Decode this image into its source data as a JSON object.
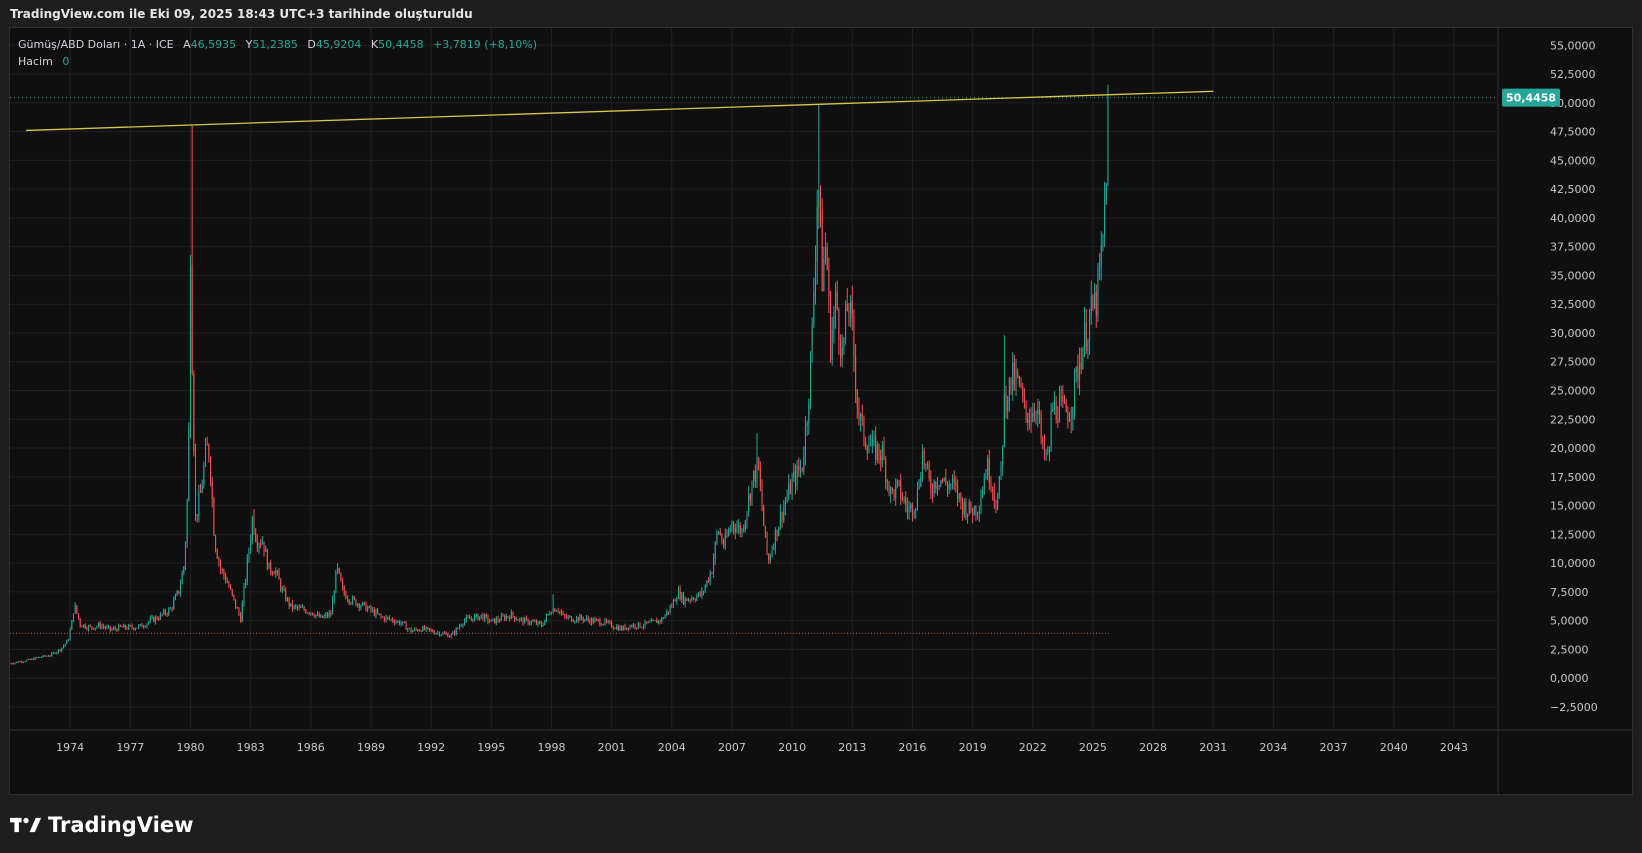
{
  "caption": "TradingView.com ile Eki 09, 2025 18:43 UTC+3 tarihinde oluşturuldu",
  "legend": {
    "symbol": "Gümüş/ABD Doları · 1A · ICE",
    "open_label": "A",
    "open": "46,5935",
    "high_label": "Y",
    "high": "51,2385",
    "low_label": "D",
    "low": "45,9204",
    "close_label": "K",
    "close": "50,4458",
    "change": "+3,7819 (+8,10%)",
    "volume_label": "Hacim",
    "volume": "0"
  },
  "price_badge": "50,4458",
  "brand": {
    "name": "TradingView",
    "icon": "tradingview-logo-icon"
  },
  "colors": {
    "up": "#26a69a",
    "down": "#ef5350",
    "trendline": "#d4c84a",
    "badge": "#26a69a",
    "grid": "#1f1f1f",
    "axis_text": "#c8c8c8"
  },
  "chart_data": {
    "type": "candlestick",
    "interval": "1 month",
    "xlim": [
      1971.0,
      2045.2
    ],
    "ylim": [
      -4.5,
      56.5
    ],
    "x_ticks": [
      "1974",
      "1977",
      "1980",
      "1983",
      "1986",
      "1989",
      "1992",
      "1995",
      "1998",
      "2001",
      "2004",
      "2007",
      "2010",
      "2013",
      "2016",
      "2019",
      "2022",
      "2025",
      "2028",
      "2031",
      "2034",
      "2037",
      "2040",
      "2043"
    ],
    "y_ticks": [
      "55,0000",
      "52,5000",
      "50,0000",
      "47,5000",
      "45,0000",
      "42,5000",
      "40,0000",
      "37,5000",
      "35,0000",
      "32,5000",
      "30,0000",
      "27,5000",
      "25,0000",
      "22,5000",
      "20,0000",
      "17,5000",
      "15,0000",
      "12,5000",
      "10,0000",
      "7,5000",
      "5,0000",
      "2,5000",
      "0,0000",
      "−2,5000"
    ],
    "last_price": 50.4458,
    "trendline": {
      "from": [
        1971.8,
        47.6
      ],
      "to": [
        2031.0,
        51.0
      ]
    },
    "support_line": {
      "y": 3.9,
      "from": 1971.0,
      "to": 2025.8
    },
    "price_path": [
      [
        1971.0,
        1.3
      ],
      [
        1971.5,
        1.45
      ],
      [
        1972.0,
        1.6
      ],
      [
        1972.5,
        1.85
      ],
      [
        1973.0,
        2.0
      ],
      [
        1973.5,
        2.5
      ],
      [
        1973.9,
        3.3
      ],
      [
        1974.1,
        5.0
      ],
      [
        1974.2,
        6.4
      ],
      [
        1974.5,
        4.7
      ],
      [
        1975.0,
        4.4
      ],
      [
        1975.5,
        4.6
      ],
      [
        1976.0,
        4.2
      ],
      [
        1976.5,
        4.4
      ],
      [
        1977.0,
        4.4
      ],
      [
        1977.5,
        4.5
      ],
      [
        1978.0,
        5.0
      ],
      [
        1978.5,
        5.4
      ],
      [
        1979.0,
        6.0
      ],
      [
        1979.4,
        7.5
      ],
      [
        1979.7,
        10.0
      ],
      [
        1979.9,
        18.0
      ],
      [
        1980.0,
        38.0
      ],
      [
        1980.1,
        26.0
      ],
      [
        1980.25,
        14.0
      ],
      [
        1980.5,
        16.0
      ],
      [
        1980.8,
        20.0
      ],
      [
        1980.95,
        19.5
      ],
      [
        1981.2,
        12.0
      ],
      [
        1981.5,
        9.5
      ],
      [
        1981.8,
        8.5
      ],
      [
        1982.2,
        6.5
      ],
      [
        1982.5,
        5.2
      ],
      [
        1982.8,
        9.5
      ],
      [
        1983.1,
        14.0
      ],
      [
        1983.3,
        12.0
      ],
      [
        1983.6,
        12.0
      ],
      [
        1983.9,
        9.5
      ],
      [
        1984.2,
        9.5
      ],
      [
        1984.6,
        7.5
      ],
      [
        1985.0,
        6.2
      ],
      [
        1985.5,
        6.0
      ],
      [
        1986.0,
        5.8
      ],
      [
        1986.5,
        5.2
      ],
      [
        1987.0,
        5.6
      ],
      [
        1987.3,
        9.5
      ],
      [
        1987.6,
        7.5
      ],
      [
        1988.0,
        6.8
      ],
      [
        1988.5,
        6.4
      ],
      [
        1989.0,
        5.9
      ],
      [
        1989.5,
        5.3
      ],
      [
        1990.0,
        5.1
      ],
      [
        1990.5,
        4.8
      ],
      [
        1991.0,
        4.1
      ],
      [
        1991.5,
        4.3
      ],
      [
        1992.0,
        4.1
      ],
      [
        1992.5,
        3.9
      ],
      [
        1993.0,
        3.7
      ],
      [
        1993.3,
        4.3
      ],
      [
        1993.6,
        5.0
      ],
      [
        1994.0,
        5.2
      ],
      [
        1994.5,
        5.4
      ],
      [
        1995.0,
        4.9
      ],
      [
        1995.5,
        5.2
      ],
      [
        1996.0,
        5.5
      ],
      [
        1996.5,
        5.0
      ],
      [
        1997.0,
        4.9
      ],
      [
        1997.5,
        4.6
      ],
      [
        1998.0,
        6.0
      ],
      [
        1998.3,
        6.1
      ],
      [
        1998.6,
        5.3
      ],
      [
        1999.0,
        5.2
      ],
      [
        1999.5,
        5.2
      ],
      [
        2000.0,
        5.0
      ],
      [
        2000.5,
        4.9
      ],
      [
        2001.0,
        4.6
      ],
      [
        2001.5,
        4.3
      ],
      [
        2002.0,
        4.6
      ],
      [
        2002.5,
        4.6
      ],
      [
        2003.0,
        4.8
      ],
      [
        2003.5,
        5.1
      ],
      [
        2004.0,
        6.3
      ],
      [
        2004.3,
        7.5
      ],
      [
        2004.6,
        6.8
      ],
      [
        2005.0,
        7.0
      ],
      [
        2005.5,
        7.3
      ],
      [
        2006.0,
        9.5
      ],
      [
        2006.3,
        13.0
      ],
      [
        2006.6,
        11.5
      ],
      [
        2007.0,
        13.5
      ],
      [
        2007.5,
        12.8
      ],
      [
        2008.0,
        17.0
      ],
      [
        2008.3,
        18.5
      ],
      [
        2008.6,
        13.0
      ],
      [
        2008.8,
        10.0
      ],
      [
        2009.0,
        11.5
      ],
      [
        2009.5,
        14.5
      ],
      [
        2010.0,
        17.0
      ],
      [
        2010.5,
        18.5
      ],
      [
        2010.8,
        24.0
      ],
      [
        2011.0,
        30.0
      ],
      [
        2011.3,
        44.0
      ],
      [
        2011.5,
        35.0
      ],
      [
        2011.7,
        38.0
      ],
      [
        2011.9,
        29.0
      ],
      [
        2012.2,
        33.0
      ],
      [
        2012.5,
        28.0
      ],
      [
        2012.8,
        33.0
      ],
      [
        2013.0,
        30.0
      ],
      [
        2013.3,
        23.0
      ],
      [
        2013.6,
        21.0
      ],
      [
        2014.0,
        20.0
      ],
      [
        2014.5,
        19.5
      ],
      [
        2014.9,
        16.0
      ],
      [
        2015.3,
        16.5
      ],
      [
        2015.8,
        14.5
      ],
      [
        2016.2,
        15.5
      ],
      [
        2016.5,
        19.5
      ],
      [
        2016.9,
        16.5
      ],
      [
        2017.3,
        17.5
      ],
      [
        2017.7,
        16.8
      ],
      [
        2018.0,
        16.8
      ],
      [
        2018.5,
        15.0
      ],
      [
        2018.9,
        14.5
      ],
      [
        2019.3,
        15.0
      ],
      [
        2019.7,
        18.5
      ],
      [
        2019.9,
        17.5
      ],
      [
        2020.2,
        15.0
      ],
      [
        2020.4,
        17.5
      ],
      [
        2020.6,
        24.5
      ],
      [
        2020.8,
        25.0
      ],
      [
        2021.0,
        26.0
      ],
      [
        2021.3,
        25.5
      ],
      [
        2021.6,
        23.0
      ],
      [
        2021.9,
        23.0
      ],
      [
        2022.2,
        24.0
      ],
      [
        2022.5,
        19.5
      ],
      [
        2022.8,
        19.0
      ],
      [
        2022.95,
        23.5
      ],
      [
        2023.3,
        23.5
      ],
      [
        2023.6,
        23.0
      ],
      [
        2023.9,
        23.5
      ],
      [
        2024.2,
        26.5
      ],
      [
        2024.5,
        29.0
      ],
      [
        2024.8,
        31.0
      ],
      [
        2025.0,
        32.0
      ],
      [
        2025.2,
        33.0
      ],
      [
        2025.4,
        36.0
      ],
      [
        2025.55,
        39.0
      ],
      [
        2025.65,
        44.0
      ],
      [
        2025.72,
        46.6
      ],
      [
        2025.78,
        50.4458
      ]
    ],
    "spikes": [
      [
        1980.05,
        48.0
      ],
      [
        1983.2,
        14.7
      ],
      [
        1987.3,
        10.0
      ],
      [
        1998.1,
        7.3
      ],
      [
        2008.25,
        21.3
      ],
      [
        2011.35,
        49.8
      ],
      [
        2020.55,
        29.8
      ],
      [
        2025.78,
        51.2385
      ]
    ]
  }
}
